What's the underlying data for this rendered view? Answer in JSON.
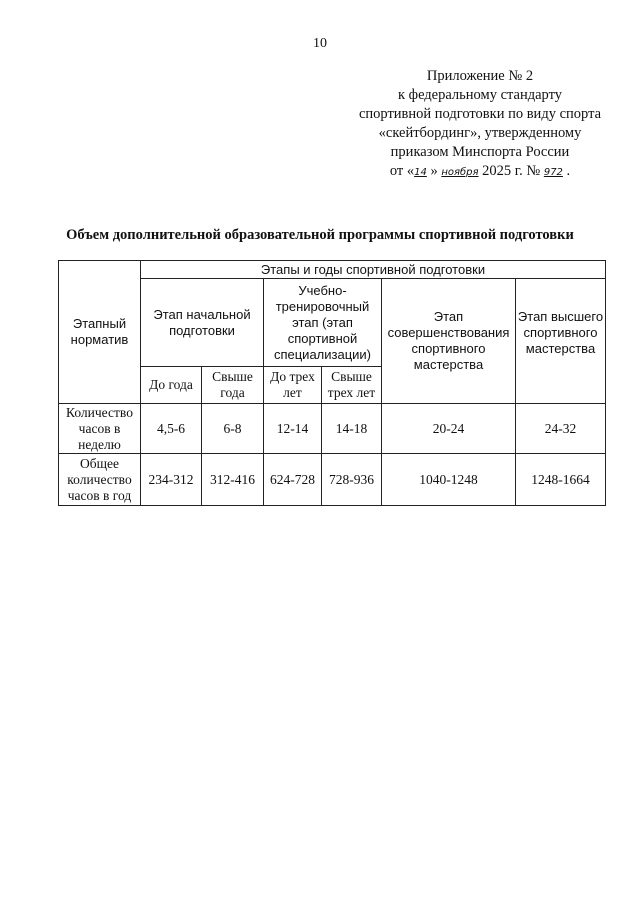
{
  "page_number": "10",
  "appendix": {
    "line1": "Приложение № 2",
    "line2": "к федеральному стандарту",
    "line3": "спортивной подготовки по виду спорта",
    "line4": "«скейтбординг», утвержденному",
    "line5": "приказом Минспорта России",
    "date_prefix": "от «",
    "day": "14",
    "date_mid": "»",
    "month": "ноября",
    "year": "2025 г. №",
    "number": "972",
    "end": "."
  },
  "title": "Объем дополнительной образовательной программы спортивной подготовки",
  "table": {
    "row_header": "Этапный норматив",
    "group_header": "Этапы и годы спортивной подготовки",
    "stages": [
      "Этап начальной подготовки",
      "Учебно-тренировочный этап (этап спортивной специализации)",
      "Этап совершенствования спортивного мастерства",
      "Этап высшего спортивного мастерства"
    ],
    "sub": [
      "До года",
      "Свыше года",
      "До трех лет",
      "Свыше трех лет"
    ],
    "rows": [
      {
        "label": "Количество часов в неделю",
        "values": [
          "4,5-6",
          "6-8",
          "12-14",
          "14-18",
          "20-24",
          "24-32"
        ]
      },
      {
        "label": "Общее количество часов в год",
        "values": [
          "234-312",
          "312-416",
          "624-728",
          "728-936",
          "1040-1248",
          "1248-1664"
        ]
      }
    ]
  }
}
